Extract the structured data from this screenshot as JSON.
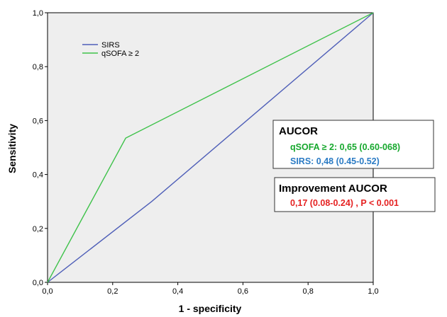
{
  "chart_data": {
    "type": "line",
    "title": "",
    "xlabel": "1 - specificity",
    "ylabel": "Sensitivity",
    "xlim": [
      0,
      1
    ],
    "ylim": [
      0,
      1
    ],
    "x_ticks": [
      "0,0",
      "0,2",
      "0,4",
      "0,6",
      "0,8",
      "1,0"
    ],
    "y_ticks": [
      "0,0",
      "0,2",
      "0,4",
      "0,6",
      "0,8",
      "1,0"
    ],
    "grid": false,
    "legend_position": "top-left",
    "series": [
      {
        "name": "SIRS",
        "color": "#4f5fb8",
        "points": [
          [
            0,
            0
          ],
          [
            0.32,
            0.3
          ],
          [
            1,
            1
          ]
        ]
      },
      {
        "name": "qSOFA ≥ 2",
        "color": "#3ec24a",
        "points": [
          [
            0,
            0
          ],
          [
            0.24,
            0.535
          ],
          [
            1,
            1
          ]
        ]
      }
    ],
    "annotations": {
      "aucor": {
        "title": "AUCOR",
        "lines": [
          {
            "text": "qSOFA ≥ 2: 0,65 (0.60-068)",
            "color": "#16a82d"
          },
          {
            "text": "SIRS: 0,48  (0.45-0.52)",
            "color": "#2b7bc4"
          }
        ]
      },
      "improvement": {
        "title": "Improvement AUCOR",
        "lines": [
          {
            "text": "0,17 (0.08-0.24) , P < 0.001",
            "color": "#e52222"
          }
        ]
      }
    }
  },
  "colors": {
    "plot_background": "#eeeeee",
    "axis": "#000000"
  }
}
